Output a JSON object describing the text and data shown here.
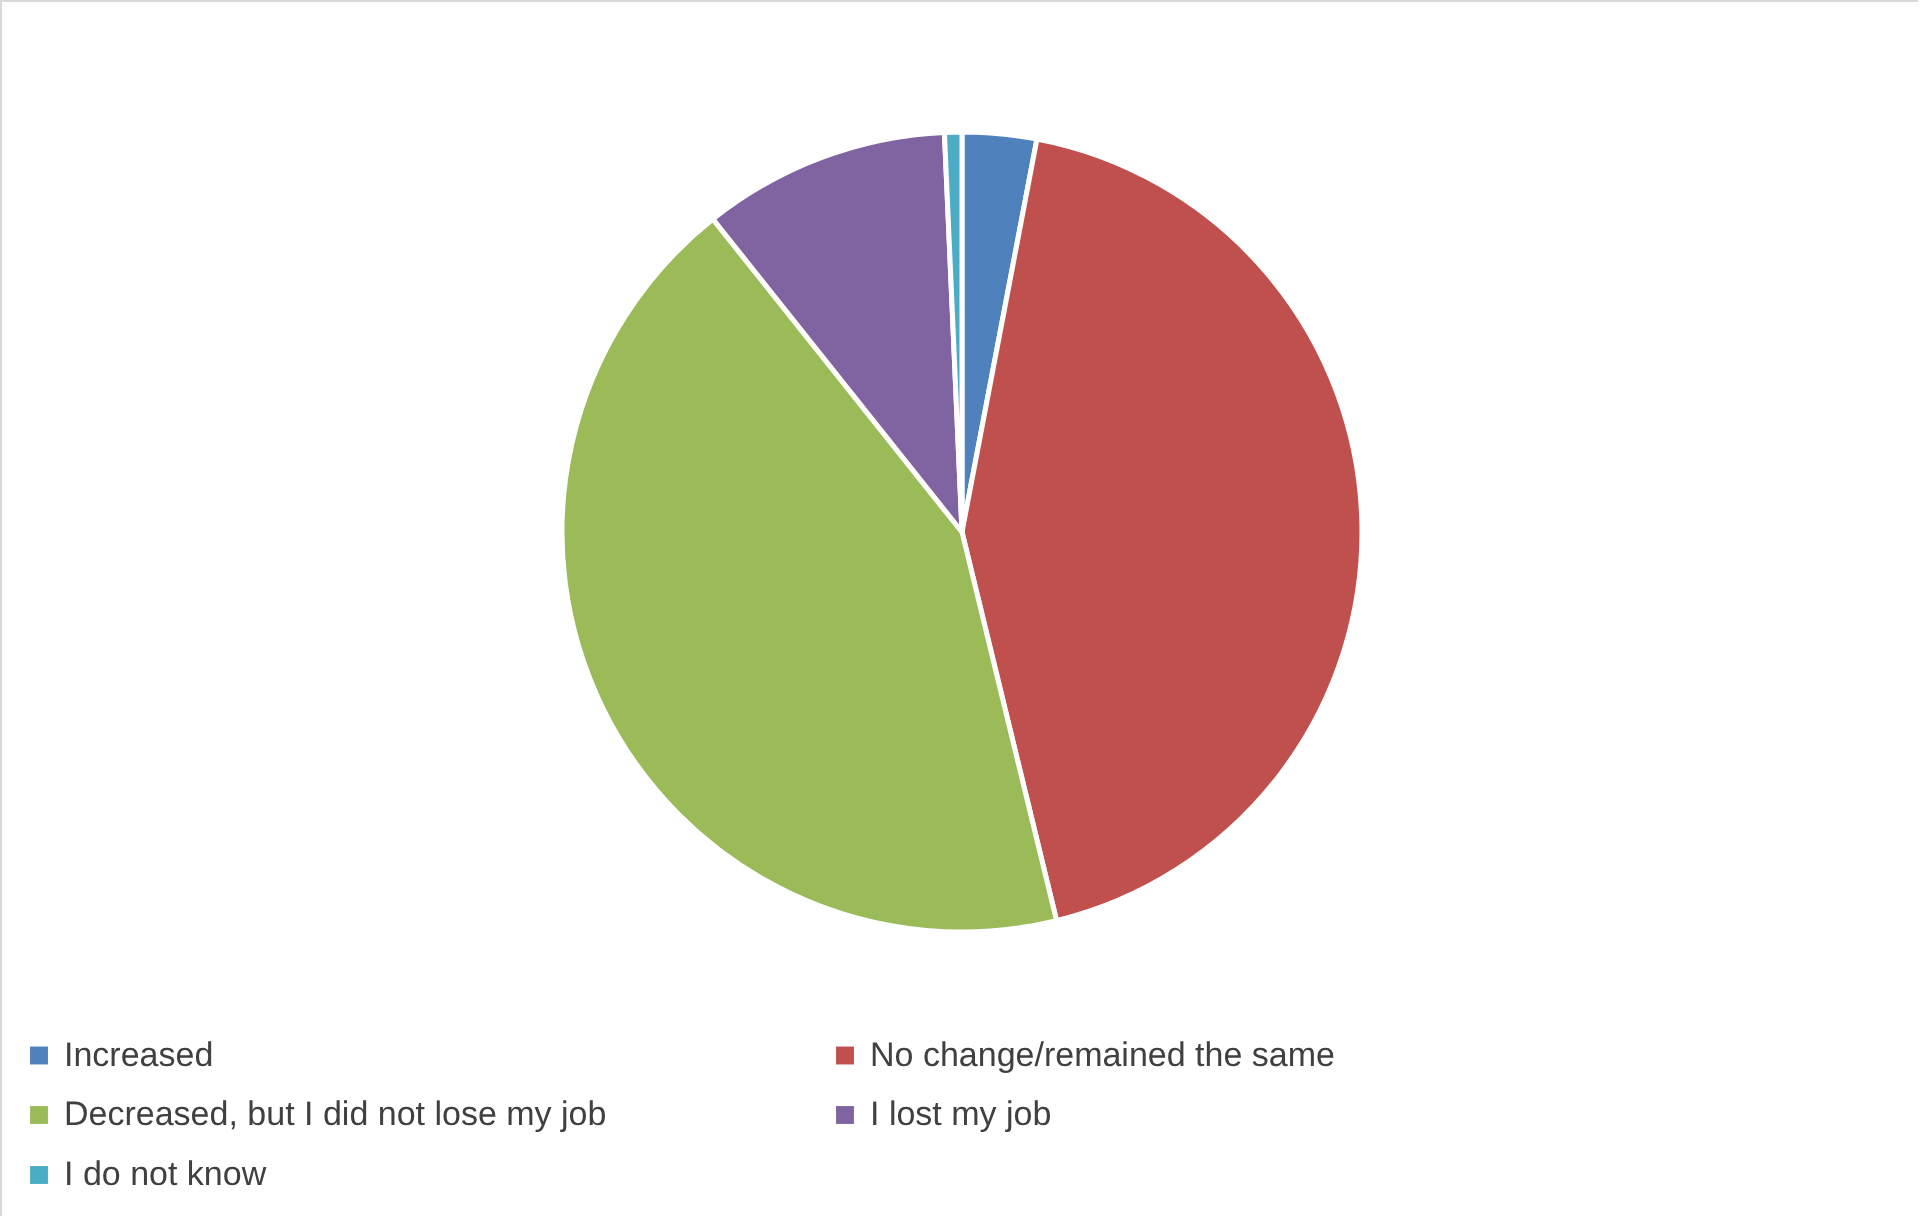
{
  "chart_data": {
    "type": "pie",
    "categories": [
      "Increased",
      "No change/remained the same",
      "Decreased, but I did not lose my job",
      "I lost my job",
      "I do not know"
    ],
    "values": [
      3,
      43.2,
      43.1,
      10,
      0.7
    ],
    "colors": [
      "#4f81bd",
      "#c0504d",
      "#9bbb59",
      "#8064a2",
      "#4bacc6"
    ],
    "legend": "bottom"
  }
}
